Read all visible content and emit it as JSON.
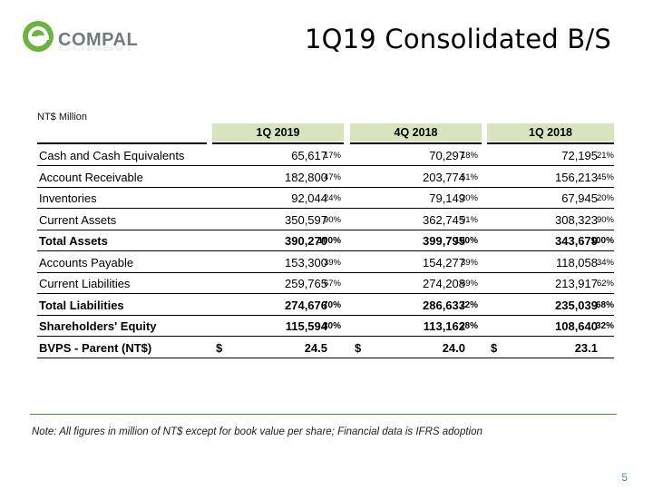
{
  "brand": {
    "logo_text": "COMPAL",
    "accent": "#6cb33f"
  },
  "title": "1Q19 Consolidated B/S",
  "unit_label": "NT$ Million",
  "periods": [
    "1Q 2019",
    "4Q 2018",
    "1Q 2018"
  ],
  "rows": [
    {
      "label": "Cash and Cash Equivalents",
      "bold": false,
      "cells": [
        {
          "value": "65,617",
          "pct": "17%"
        },
        {
          "value": "70,297",
          "pct": "18%"
        },
        {
          "value": "72,195",
          "pct": "21%"
        }
      ]
    },
    {
      "label": "Account Receivable",
      "bold": false,
      "cells": [
        {
          "value": "182,800",
          "pct": "47%"
        },
        {
          "value": "203,774",
          "pct": "51%"
        },
        {
          "value": "156,213",
          "pct": "45%"
        }
      ]
    },
    {
      "label": "Inventories",
      "bold": false,
      "cells": [
        {
          "value": "92,044",
          "pct": "24%"
        },
        {
          "value": "79,149",
          "pct": "20%"
        },
        {
          "value": "67,945",
          "pct": "20%"
        }
      ]
    },
    {
      "label": "Current Assets",
      "bold": false,
      "cells": [
        {
          "value": "350,597",
          "pct": "90%"
        },
        {
          "value": "362,745",
          "pct": "91%"
        },
        {
          "value": "308,323",
          "pct": "90%"
        }
      ]
    },
    {
      "label": "Total Assets",
      "bold": true,
      "cells": [
        {
          "value": "390,270",
          "pct": "100%"
        },
        {
          "value": "399,795",
          "pct": "100%"
        },
        {
          "value": "343,679",
          "pct": "100%"
        }
      ]
    },
    {
      "label": "Accounts Payable",
      "bold": false,
      "cells": [
        {
          "value": "153,300",
          "pct": "39%"
        },
        {
          "value": "154,277",
          "pct": "39%"
        },
        {
          "value": "118,058",
          "pct": "34%"
        }
      ]
    },
    {
      "label": "Current Liabilities",
      "bold": false,
      "cells": [
        {
          "value": "259,765",
          "pct": "67%"
        },
        {
          "value": "274,208",
          "pct": "69%"
        },
        {
          "value": "213,917",
          "pct": "62%"
        }
      ]
    },
    {
      "label": "Total Liabilities",
      "bold": true,
      "cells": [
        {
          "value": "274,676",
          "pct": "70%"
        },
        {
          "value": "286,633",
          "pct": "72%"
        },
        {
          "value": "235,039",
          "pct": "68%"
        }
      ]
    },
    {
      "label": "Shareholders' Equity",
      "bold": true,
      "cells": [
        {
          "value": "115,594",
          "pct": "30%"
        },
        {
          "value": "113,162",
          "pct": "28%"
        },
        {
          "value": "108,640",
          "pct": "32%"
        }
      ]
    },
    {
      "label": "BVPS - Parent (NT$)",
      "bold": true,
      "currency": "$",
      "cells": [
        {
          "value": "24.5",
          "pct": ""
        },
        {
          "value": "24.0",
          "pct": ""
        },
        {
          "value": "23.1",
          "pct": ""
        }
      ]
    }
  ],
  "note": "Note: All figures in million of NT$ except for book value per share; Financial data is IFRS adoption",
  "page_number": "5"
}
